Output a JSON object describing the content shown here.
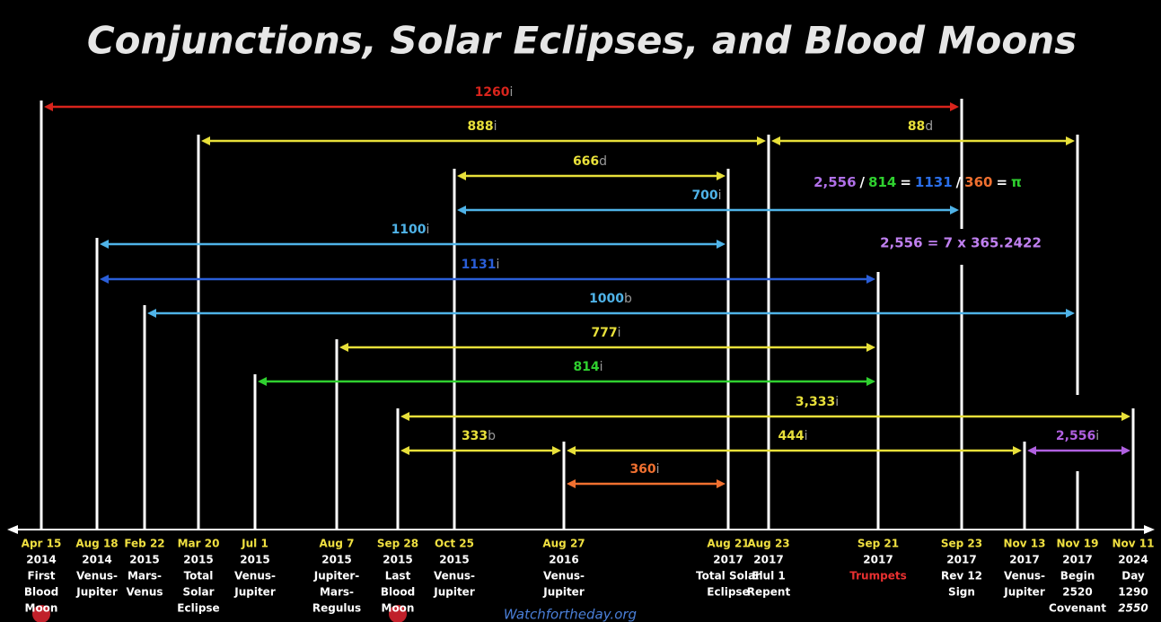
{
  "title": "Conjunctions, Solar Eclipses, and Blood Moons",
  "events": [
    {
      "date": "Apr 15",
      "year": "2014",
      "lines": [
        "First",
        "Blood",
        "Moon"
      ]
    },
    {
      "date": "Aug 18",
      "year": "2014",
      "lines": [
        "Venus-",
        "Jupiter"
      ]
    },
    {
      "date": "Feb 22",
      "year": "2015",
      "lines": [
        "Mars-",
        "Venus"
      ]
    },
    {
      "date": "Mar 20",
      "year": "2015",
      "lines": [
        "Total",
        "Solar",
        "Eclipse"
      ]
    },
    {
      "date": "Jul 1",
      "year": "2015",
      "lines": [
        "Venus-",
        "Jupiter"
      ]
    },
    {
      "date": "Aug 7",
      "year": "2015",
      "lines": [
        "Jupiter-",
        "Mars-",
        "Regulus"
      ]
    },
    {
      "date": "Sep 28",
      "year": "2015",
      "lines": [
        "Last",
        "Blood",
        "Moon"
      ]
    },
    {
      "date": "Oct 25",
      "year": "2015",
      "lines": [
        "Venus-",
        "Jupiter"
      ]
    },
    {
      "date": "Aug 27",
      "year": "2016",
      "lines": [
        "Venus-",
        "Jupiter"
      ]
    },
    {
      "date": "Aug 21",
      "year": "2017",
      "lines": [
        "Total Solar",
        "Eclipse"
      ]
    },
    {
      "date": "Aug 23",
      "year": "2017",
      "lines": [
        "Elul 1",
        "Repent"
      ]
    },
    {
      "date": "Sep 21",
      "year": "2017",
      "lines": [
        "Trumpets"
      ]
    },
    {
      "date": "Sep 23",
      "year": "2017",
      "lines": [
        "Rev 12",
        "Sign"
      ]
    },
    {
      "date": "Nov 13",
      "year": "2017",
      "lines": [
        "Venus-",
        "Jupiter"
      ]
    },
    {
      "date": "Nov 19",
      "year": "2017",
      "lines": [
        "Begin",
        "2520",
        "Covenant"
      ]
    },
    {
      "date": "Nov 11",
      "year": "2024",
      "lines": [
        "Day",
        "1290",
        "2550"
      ]
    }
  ],
  "spans": [
    {
      "number": "1260",
      "unit": "i"
    },
    {
      "number": "888",
      "unit": "i"
    },
    {
      "number": "88",
      "unit": "d"
    },
    {
      "number": "666",
      "unit": "d"
    },
    {
      "number": "700",
      "unit": "i"
    },
    {
      "number": "1100",
      "unit": "i"
    },
    {
      "number": "1131",
      "unit": "i"
    },
    {
      "number": "1000",
      "unit": "b"
    },
    {
      "number": "777",
      "unit": "i"
    },
    {
      "number": "814",
      "unit": "i"
    },
    {
      "number": "3,333",
      "unit": "i"
    },
    {
      "number": "333",
      "unit": "b"
    },
    {
      "number": "444",
      "unit": "i"
    },
    {
      "number": "2,556",
      "unit": "i"
    },
    {
      "number": "360",
      "unit": "i"
    }
  ],
  "equation_1": [
    "2,556",
    "/",
    "814",
    "=",
    "1131",
    "/",
    "360",
    "=",
    "π"
  ],
  "equation_2": "2,556 = 7 x 365.2422",
  "footer": "Watchfortheday.org"
}
